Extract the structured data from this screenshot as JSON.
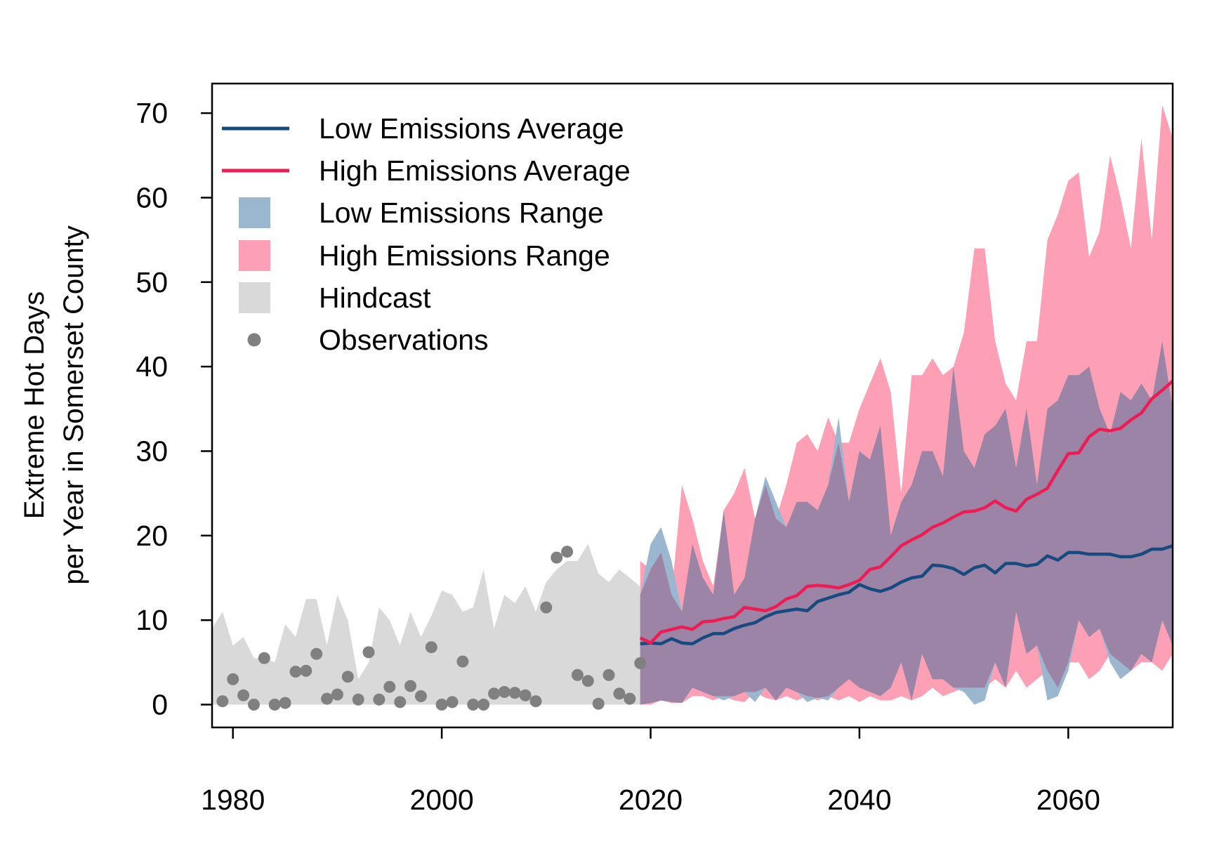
{
  "chart_data": {
    "type": "line",
    "title": "",
    "xlabel": "",
    "ylabel": [
      "Extreme Hot Days",
      "per Year in Somerset County"
    ],
    "xlim": [
      1978,
      2070
    ],
    "ylim": [
      -2.7,
      73.5
    ],
    "xticks": [
      "1980",
      "2000",
      "2020",
      "2040",
      "2060"
    ],
    "yticks": [
      "0",
      "10",
      "20",
      "30",
      "40",
      "50",
      "60",
      "70"
    ],
    "grid": false,
    "legend_position": "top-left",
    "colors": {
      "low_line": "#174a7e",
      "high_line": "#ee1c55",
      "low_range": "#9bb6cf",
      "high_range": "#fda0b6",
      "overlap": "#9b84a5",
      "hindcast": "#d9d9d9",
      "observations": "#808080"
    },
    "legend": [
      {
        "key": "low_line",
        "label": "Low Emissions Average",
        "symbol": "line"
      },
      {
        "key": "high_line",
        "label": "High Emissions Average",
        "symbol": "line"
      },
      {
        "key": "low_range",
        "label": "Low Emissions Range",
        "symbol": "box"
      },
      {
        "key": "high_range",
        "label": "High Emissions Range",
        "symbol": "box"
      },
      {
        "key": "hindcast",
        "label": "Hindcast",
        "symbol": "box"
      },
      {
        "key": "observations",
        "label": "Observations",
        "symbol": "point"
      }
    ],
    "hindcast": {
      "x": [
        1978,
        1979,
        1980,
        1981,
        1982,
        1983,
        1984,
        1985,
        1986,
        1987,
        1988,
        1989,
        1990,
        1991,
        1992,
        1993,
        1994,
        1995,
        1996,
        1997,
        1998,
        1999,
        2000,
        2001,
        2002,
        2003,
        2004,
        2005,
        2006,
        2007,
        2008,
        2009,
        2010,
        2011,
        2012,
        2013,
        2014,
        2015,
        2016,
        2017,
        2018,
        2019
      ],
      "upper": [
        9,
        11,
        7,
        8,
        5.5,
        5.5,
        5,
        9.5,
        8,
        12.5,
        12.5,
        7,
        13,
        10,
        3,
        5,
        11.5,
        10,
        7,
        11,
        8,
        10.5,
        13.5,
        13,
        11,
        11.5,
        16,
        9,
        13,
        12,
        14,
        11,
        14.5,
        16,
        17,
        17,
        19,
        15.5,
        14.5,
        16,
        15,
        14
      ],
      "lower": [
        0,
        0,
        0,
        0,
        0,
        0,
        0,
        0,
        0,
        0,
        0,
        0,
        0,
        0,
        0,
        0,
        0,
        0,
        0,
        0,
        0,
        0,
        0,
        0,
        0,
        0,
        0,
        0,
        0,
        0,
        0,
        0,
        0,
        0,
        0,
        0,
        0,
        0,
        0,
        0,
        0,
        0
      ]
    },
    "observations": {
      "x": [
        1979,
        1980,
        1981,
        1982,
        1983,
        1984,
        1985,
        1986,
        1987,
        1988,
        1989,
        1990,
        1991,
        1992,
        1993,
        1994,
        1995,
        1996,
        1997,
        1998,
        1999,
        2000,
        2001,
        2002,
        2003,
        2004,
        2005,
        2006,
        2007,
        2008,
        2009,
        2010,
        2011,
        2012,
        2013,
        2014,
        2015,
        2016,
        2017,
        2018,
        2019
      ],
      "y": [
        0.4,
        3,
        1.1,
        0,
        5.5,
        0,
        0.2,
        3.9,
        4,
        6,
        0.7,
        1.2,
        3.3,
        0.6,
        6.2,
        0.6,
        2.1,
        0.3,
        2.2,
        1,
        6.8,
        0,
        0.3,
        5.1,
        0,
        0,
        1.3,
        1.5,
        1.4,
        1.1,
        0.4,
        11.5,
        17.4,
        18.1,
        3.5,
        2.8,
        0.1,
        3.5,
        1.3,
        0.7,
        4.9
      ]
    },
    "low_range": {
      "x": [
        2019,
        2020,
        2021,
        2022,
        2023,
        2024,
        2025,
        2026,
        2027,
        2028,
        2029,
        2030,
        2031,
        2032,
        2033,
        2034,
        2035,
        2036,
        2037,
        2038,
        2039,
        2040,
        2041,
        2042,
        2043,
        2044,
        2045,
        2046,
        2047,
        2048,
        2049,
        2050,
        2051,
        2052,
        2053,
        2054,
        2055,
        2056,
        2057,
        2058,
        2059,
        2060,
        2061,
        2062,
        2063,
        2064,
        2065,
        2066,
        2067,
        2068,
        2069,
        2070
      ],
      "upper": [
        13,
        19,
        21,
        17,
        11,
        19,
        15,
        13,
        23,
        13,
        15,
        22,
        27,
        24,
        21,
        24,
        24,
        23,
        26,
        34,
        24,
        30,
        29,
        33,
        20,
        24,
        26,
        30,
        30,
        27,
        40,
        30,
        28,
        32,
        33,
        35,
        28,
        35,
        26,
        35,
        36,
        39,
        39,
        40,
        35,
        32,
        37,
        36,
        38,
        36,
        43,
        35
      ],
      "lower": [
        0,
        0.2,
        0.5,
        0.3,
        0.2,
        2,
        1.5,
        1,
        0.5,
        1,
        1.5,
        0.3,
        2,
        0.5,
        2,
        1.5,
        0.3,
        0.8,
        0.5,
        2,
        3,
        2,
        1.5,
        1,
        2,
        5,
        0.5,
        6,
        3,
        3,
        2,
        1.5,
        0,
        0.5,
        5,
        2,
        11,
        6,
        7,
        0.5,
        1,
        4,
        10,
        8,
        9,
        5,
        3,
        4,
        6,
        5,
        10,
        7
      ]
    },
    "high_range": {
      "x": [
        2019,
        2020,
        2021,
        2022,
        2023,
        2024,
        2025,
        2026,
        2027,
        2028,
        2029,
        2030,
        2031,
        2032,
        2033,
        2034,
        2035,
        2036,
        2037,
        2038,
        2039,
        2040,
        2041,
        2042,
        2043,
        2044,
        2045,
        2046,
        2047,
        2048,
        2049,
        2050,
        2051,
        2052,
        2053,
        2054,
        2055,
        2056,
        2057,
        2058,
        2059,
        2060,
        2061,
        2062,
        2063,
        2064,
        2065,
        2066,
        2067,
        2068,
        2069,
        2070
      ],
      "upper": [
        17,
        16,
        18,
        13,
        26,
        22,
        17,
        14,
        23,
        25,
        28,
        22,
        26,
        22,
        26,
        31,
        32,
        30,
        34,
        31,
        31,
        35,
        38,
        41,
        37,
        25,
        39,
        39,
        41,
        39,
        40,
        44,
        54,
        54,
        43,
        38,
        36,
        43,
        43,
        55,
        58,
        62,
        63,
        53,
        56,
        65,
        60,
        54,
        67,
        55,
        71,
        67
      ],
      "lower": [
        0,
        0,
        0.5,
        0.2,
        0.2,
        1,
        1,
        0.5,
        1,
        0.5,
        0.3,
        1.5,
        0.8,
        0.5,
        1,
        0.5,
        1,
        0.5,
        1,
        0.5,
        1,
        0.3,
        1,
        0.5,
        0.5,
        1,
        0.5,
        1,
        2,
        1,
        1.5,
        2,
        2,
        2,
        3,
        2,
        4,
        2,
        3,
        4,
        2,
        5,
        5,
        3,
        4,
        6,
        5,
        4,
        5,
        5,
        4,
        6
      ]
    },
    "series": [
      {
        "name": "Low Emissions Average",
        "x": [
          2019,
          2020,
          2021,
          2022,
          2023,
          2024,
          2025,
          2026,
          2027,
          2028,
          2029,
          2030,
          2031,
          2032,
          2033,
          2034,
          2035,
          2036,
          2037,
          2038,
          2039,
          2040,
          2041,
          2042,
          2043,
          2044,
          2045,
          2046,
          2047,
          2048,
          2049,
          2050,
          2051,
          2052,
          2053,
          2054,
          2055,
          2056,
          2057,
          2058,
          2059,
          2060,
          2061,
          2062,
          2063,
          2064,
          2065,
          2066,
          2067,
          2068,
          2069,
          2070
        ],
        "values": [
          7.2,
          7.3,
          7.2,
          7.8,
          7.3,
          7.2,
          7.9,
          8.4,
          8.4,
          9,
          9.4,
          9.7,
          10.4,
          10.9,
          11.1,
          11.3,
          11.1,
          12.2,
          12.6,
          13,
          13.3,
          14.2,
          13.7,
          13.4,
          13.8,
          14.5,
          15,
          15.2,
          16.5,
          16.4,
          16.1,
          15.4,
          16.2,
          16.5,
          15.6,
          16.7,
          16.7,
          16.4,
          16.6,
          17.6,
          17.1,
          18,
          18,
          17.8,
          17.8,
          17.8,
          17.5,
          17.5,
          17.8,
          18.4,
          18.4,
          18.8
        ]
      },
      {
        "name": "High Emissions Average",
        "x": [
          2019,
          2020,
          2021,
          2022,
          2023,
          2024,
          2025,
          2026,
          2027,
          2028,
          2029,
          2030,
          2031,
          2032,
          2033,
          2034,
          2035,
          2036,
          2037,
          2038,
          2039,
          2040,
          2041,
          2042,
          2043,
          2044,
          2045,
          2046,
          2047,
          2048,
          2049,
          2050,
          2051,
          2052,
          2053,
          2054,
          2055,
          2056,
          2057,
          2058,
          2059,
          2060,
          2061,
          2062,
          2063,
          2064,
          2065,
          2066,
          2067,
          2068,
          2069,
          2070
        ],
        "values": [
          7.9,
          7.3,
          8.6,
          8.9,
          9.2,
          8.9,
          9.8,
          9.9,
          10.2,
          10.4,
          11.5,
          11.3,
          11.1,
          11.6,
          12.5,
          12.9,
          14,
          14.1,
          14,
          13.8,
          14.2,
          14.7,
          16,
          16.3,
          17.5,
          18.8,
          19.5,
          20.1,
          21,
          21.5,
          22.2,
          22.8,
          22.9,
          23.3,
          24.1,
          23.3,
          22.9,
          24.3,
          24.9,
          25.6,
          27.7,
          29.7,
          29.8,
          31.7,
          32.6,
          32.4,
          32.7,
          33.7,
          34.5,
          36.2,
          37.2,
          38.3
        ]
      }
    ]
  }
}
